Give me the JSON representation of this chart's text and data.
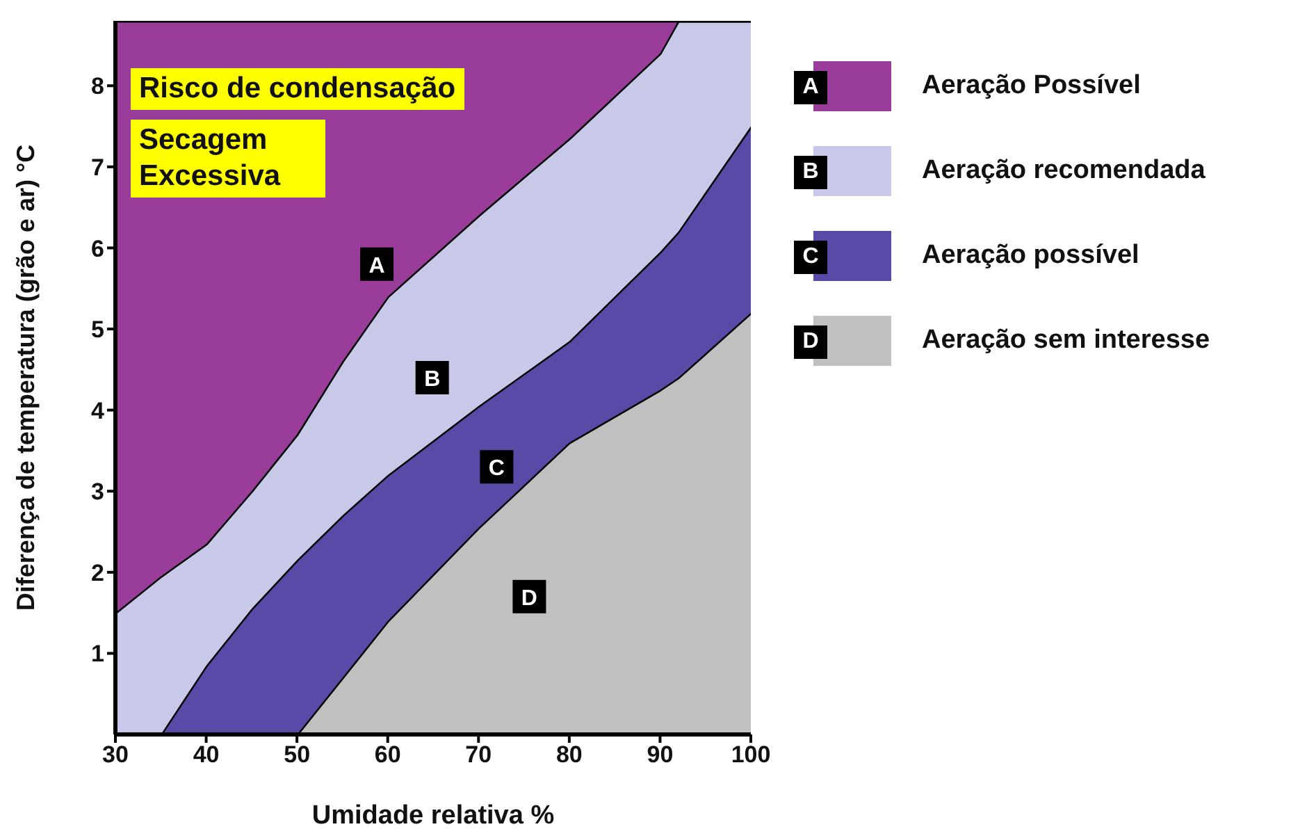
{
  "chart_data": {
    "type": "area",
    "stacked": true,
    "xlabel": "Umidade relativa %",
    "ylabel": "Diferença de temperatura (grão e ar) °C",
    "x": [
      30,
      35,
      40,
      45,
      50,
      55,
      60,
      70,
      80,
      90,
      92,
      100
    ],
    "series": [
      {
        "name": "Aeração sem interesse",
        "color": "#c0c0c0",
        "values": [
          0,
          0,
          0,
          0,
          0,
          0.7,
          1.4,
          2.55,
          3.6,
          4.25,
          4.4,
          5.2
        ]
      },
      {
        "name": "Aeração possível",
        "color": "#5a4aa8",
        "values": [
          0,
          0,
          0.85,
          1.55,
          2.15,
          2.0,
          1.8,
          1.5,
          1.25,
          1.7,
          1.8,
          2.3
        ]
      },
      {
        "name": "Aeração recomendada",
        "color": "#c8c8e8",
        "values": [
          1.5,
          1.95,
          1.5,
          1.45,
          1.55,
          1.9,
          2.2,
          2.35,
          2.5,
          2.45,
          2.6,
          1.3
        ]
      },
      {
        "name": "Aeração Possível",
        "color": "#9a3c9a",
        "values": [
          7.3,
          6.85,
          6.45,
          5.8,
          5.1,
          4.2,
          3.4,
          2.4,
          1.45,
          0.4,
          0,
          0
        ]
      }
    ],
    "xlim": [
      30,
      100
    ],
    "xticks": [
      30,
      40,
      50,
      60,
      70,
      80,
      90,
      100
    ],
    "ylim": [
      0,
      8.8
    ],
    "yticks": [
      1,
      2,
      3,
      4,
      5,
      6,
      7,
      8
    ],
    "legend": "right",
    "annotations": [
      "Risco de condensação",
      "Secagem Excessiva",
      {
        "text": "A",
        "x": 58.8,
        "y": 5.8
      },
      {
        "text": "B",
        "x": 64.9,
        "y": 4.4
      },
      {
        "text": "C",
        "x": 72,
        "y": 3.3
      },
      {
        "text": "D",
        "x": 75.6,
        "y": 1.7
      }
    ]
  }
}
